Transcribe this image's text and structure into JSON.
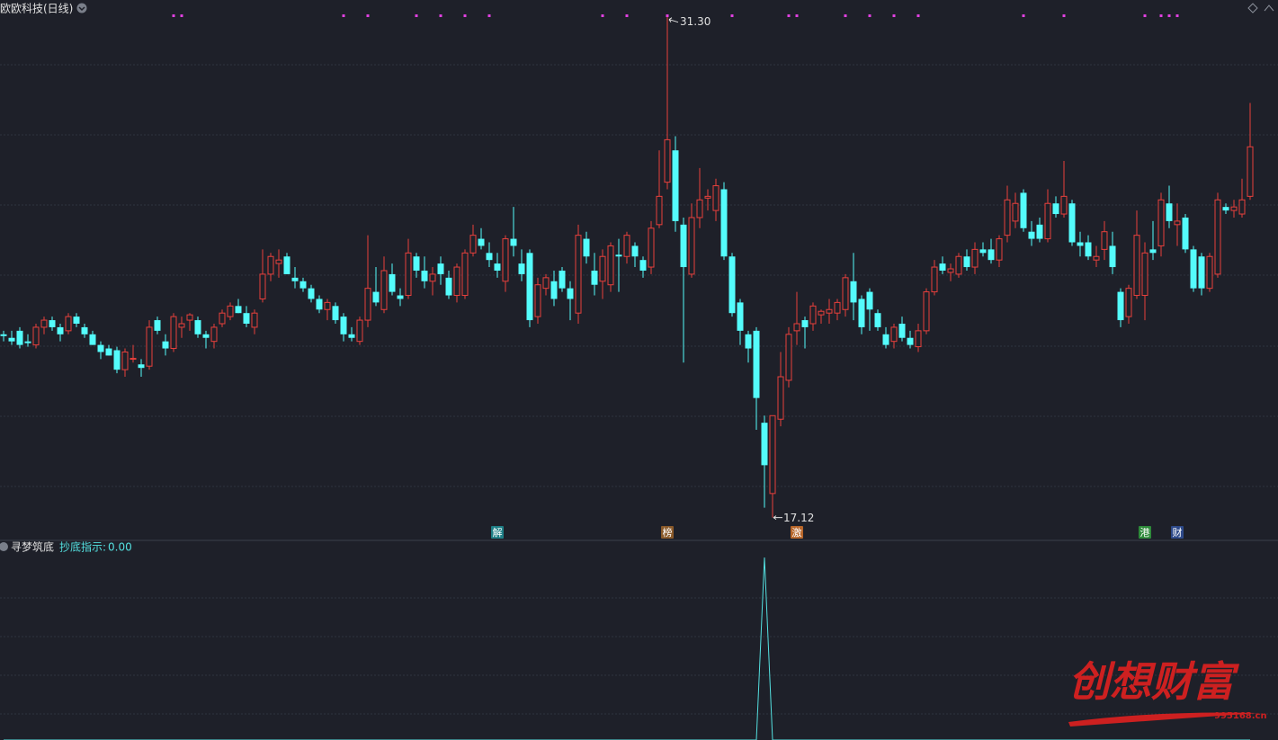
{
  "chart_data": {
    "type": "candlestick",
    "title": "欧欧科技(日线)",
    "ylim": [
      16.5,
      31.75
    ],
    "up_color": "#e8403c",
    "down_color": "#54fcfc",
    "open": [
      22.3,
      22.2,
      22.4,
      22.1,
      22.0,
      22.5,
      22.7,
      22.5,
      22.4,
      22.8,
      22.5,
      22.3,
      22.0,
      21.9,
      21.85,
      21.3,
      21.6,
      21.45,
      21.4,
      22.7,
      22.1,
      21.9,
      22.5,
      22.7,
      22.7,
      22.3,
      22.1,
      22.6,
      22.8,
      23.1,
      22.9,
      22.5,
      23.3,
      24.0,
      24.3,
      24.5,
      23.9,
      23.8,
      23.6,
      23.3,
      23.0,
      23.1,
      22.8,
      22.3,
      22.1,
      22.7,
      23.5,
      23.0,
      24.0,
      23.4,
      23.4,
      24.5,
      24.1,
      23.8,
      24.3,
      23.9,
      23.4,
      23.4,
      24.6,
      25.0,
      24.6,
      24.3,
      23.8,
      25.0,
      24.3,
      24.6,
      22.8,
      23.6,
      23.8,
      24.1,
      23.6,
      22.9,
      25.0,
      24.1,
      23.8,
      23.7,
      24.55,
      24.5,
      24.8,
      24.4,
      24.2,
      25.4,
      26.6,
      27.5,
      25.4,
      24.0,
      25.6,
      26.15,
      25.8,
      26.4,
      24.5,
      23.2,
      22.3,
      22.4,
      19.8,
      17.8,
      19.9,
      21.0,
      22.4,
      22.7,
      22.6,
      22.85,
      22.9,
      22.9,
      23.0,
      23.8,
      23.3,
      23.5,
      22.9,
      22.3,
      22.1,
      22.6,
      22.2,
      21.95,
      22.4,
      23.5,
      24.3,
      24.05,
      24.0,
      24.5,
      24.2,
      24.7,
      24.7,
      24.4,
      25.1,
      25.5,
      26.3,
      25.2,
      25.4,
      25.0,
      26.0,
      25.7,
      26.0,
      24.9,
      24.9,
      24.4,
      24.7,
      24.8,
      23.5,
      22.8,
      23.4,
      23.4,
      24.7,
      24.8,
      26.0,
      25.4,
      25.6,
      24.7,
      24.5,
      23.6,
      24.0,
      25.9,
      25.8,
      25.7,
      26.2
    ],
    "high": [
      22.4,
      22.4,
      22.5,
      22.3,
      22.6,
      22.8,
      22.8,
      22.6,
      22.9,
      22.9,
      22.6,
      22.4,
      22.1,
      22.0,
      21.95,
      21.9,
      22.0,
      21.6,
      22.7,
      22.8,
      22.3,
      22.9,
      22.8,
      22.9,
      22.8,
      22.4,
      22.6,
      23.0,
      23.2,
      23.3,
      23.1,
      23.0,
      24.7,
      24.6,
      24.7,
      24.6,
      24.2,
      23.9,
      23.7,
      23.4,
      23.3,
      23.2,
      22.9,
      22.5,
      22.8,
      25.1,
      24.2,
      24.5,
      24.3,
      23.6,
      25.0,
      24.6,
      24.5,
      24.2,
      24.5,
      24.1,
      24.3,
      24.7,
      25.4,
      25.3,
      24.9,
      24.6,
      25.1,
      25.9,
      24.7,
      24.7,
      23.9,
      24.0,
      24.1,
      24.2,
      23.8,
      25.4,
      25.2,
      24.6,
      24.7,
      24.9,
      25.0,
      25.2,
      24.9,
      24.5,
      25.5,
      27.5,
      31.3,
      27.9,
      25.6,
      26.0,
      27.0,
      26.4,
      26.7,
      26.6,
      24.6,
      23.3,
      22.4,
      22.5,
      20.0,
      20.0,
      21.8,
      22.5,
      23.5,
      22.8,
      23.2,
      23.0,
      23.3,
      23.3,
      24.0,
      24.6,
      23.4,
      23.6,
      23.0,
      22.5,
      22.6,
      22.8,
      22.4,
      22.6,
      23.6,
      24.4,
      24.5,
      24.3,
      24.6,
      24.7,
      24.9,
      24.9,
      25.0,
      25.1,
      26.5,
      26.3,
      26.4,
      25.5,
      25.6,
      26.4,
      26.2,
      27.2,
      26.1,
      25.2,
      25.1,
      24.8,
      25.5,
      25.2,
      23.6,
      23.7,
      25.8,
      24.9,
      25.5,
      26.3,
      26.5,
      26.0,
      25.7,
      24.8,
      24.6,
      24.6,
      26.3,
      26.0,
      26.1,
      26.7,
      28.84
    ],
    "low": [
      22.1,
      22.0,
      21.9,
      21.95,
      21.9,
      22.3,
      22.4,
      22.1,
      22.3,
      22.5,
      22.2,
      22.0,
      21.6,
      21.7,
      21.2,
      21.1,
      21.5,
      21.1,
      21.3,
      22.3,
      21.7,
      21.8,
      22.2,
      22.4,
      22.2,
      21.9,
      21.9,
      22.5,
      22.7,
      22.9,
      22.5,
      22.3,
      23.2,
      23.8,
      23.9,
      24.0,
      23.6,
      23.5,
      23.2,
      22.9,
      22.7,
      22.6,
      22.1,
      22.1,
      22.0,
      22.5,
      23.1,
      22.9,
      23.4,
      23.1,
      23.3,
      23.9,
      23.6,
      23.4,
      23.7,
      23.3,
      23.2,
      23.3,
      24.5,
      24.7,
      24.2,
      23.9,
      23.5,
      24.5,
      23.8,
      22.5,
      22.6,
      23.4,
      23.1,
      23.5,
      22.7,
      22.6,
      24.3,
      23.4,
      23.3,
      23.5,
      23.5,
      24.3,
      24.2,
      23.9,
      24.0,
      25.3,
      26.4,
      25.2,
      21.5,
      23.9,
      25.3,
      25.8,
      25.5,
      24.4,
      22.8,
      22.0,
      21.5,
      19.6,
      17.4,
      17.12,
      19.7,
      20.8,
      22.0,
      21.9,
      22.4,
      22.6,
      22.6,
      22.7,
      22.8,
      22.7,
      22.3,
      22.4,
      22.4,
      21.9,
      21.9,
      22.1,
      21.9,
      21.8,
      22.3,
      23.4,
      24.0,
      23.8,
      23.9,
      24.1,
      24.0,
      24.5,
      24.3,
      24.2,
      24.9,
      25.3,
      25.2,
      24.8,
      24.9,
      24.9,
      25.6,
      25.6,
      24.8,
      24.5,
      24.4,
      24.2,
      24.4,
      24.0,
      22.5,
      22.6,
      23.3,
      22.7,
      24.4,
      24.5,
      25.3,
      24.8,
      24.6,
      23.5,
      23.4,
      23.5,
      23.9,
      25.7,
      25.6,
      25.6,
      26.1
    ],
    "close": [
      22.25,
      22.1,
      22.0,
      22.05,
      22.5,
      22.7,
      22.5,
      22.3,
      22.8,
      22.6,
      22.3,
      22.0,
      21.8,
      21.7,
      21.3,
      21.8,
      21.62,
      21.35,
      22.5,
      22.4,
      21.9,
      22.8,
      22.6,
      22.85,
      22.3,
      22.2,
      22.5,
      22.9,
      23.1,
      22.9,
      22.6,
      22.9,
      24.0,
      24.5,
      24.4,
      24.0,
      23.8,
      23.6,
      23.3,
      23.0,
      23.2,
      22.7,
      22.3,
      22.2,
      22.7,
      23.6,
      23.2,
      24.1,
      23.5,
      23.3,
      24.6,
      24.1,
      23.8,
      24.0,
      24.0,
      23.4,
      24.2,
      24.6,
      25.1,
      24.8,
      24.4,
      24.1,
      25.0,
      24.8,
      24.0,
      22.7,
      23.7,
      23.9,
      23.3,
      23.6,
      23.3,
      25.1,
      24.5,
      23.7,
      24.5,
      24.8,
      24.5,
      25.1,
      24.5,
      24.1,
      25.3,
      26.2,
      27.8,
      25.5,
      24.2,
      25.6,
      26.1,
      26.2,
      26.5,
      24.5,
      22.9,
      22.4,
      21.9,
      20.5,
      18.6,
      20.0,
      21.1,
      22.3,
      22.6,
      22.5,
      23.1,
      22.95,
      23.0,
      23.2,
      23.9,
      23.2,
      22.5,
      23.0,
      22.5,
      22.0,
      22.5,
      22.2,
      22.0,
      22.4,
      23.5,
      24.2,
      24.1,
      24.15,
      24.5,
      24.2,
      24.7,
      24.6,
      24.4,
      25.0,
      26.1,
      26.0,
      25.3,
      25.0,
      25.0,
      26.0,
      25.7,
      26.2,
      24.9,
      24.8,
      24.5,
      24.5,
      25.2,
      24.2,
      22.7,
      23.6,
      25.1,
      24.6,
      24.6,
      26.1,
      25.5,
      25.5,
      24.7,
      23.6,
      23.6,
      24.5,
      26.1,
      25.8,
      25.9,
      26.1,
      27.6
    ],
    "high_label": "31.30",
    "low_label": "17.12",
    "signal_color": "#e040e0",
    "signals": [
      21,
      22,
      42,
      45,
      51,
      54,
      57,
      60,
      74,
      77,
      82,
      90,
      97,
      98,
      104,
      107,
      110,
      113,
      126,
      131,
      141,
      143,
      144,
      145
    ],
    "markers": [
      {
        "label": "解",
        "candle": 61,
        "color": "#1f7f86"
      },
      {
        "label": "榜",
        "candle": 82,
        "color": "#8a5a2a"
      },
      {
        "label": "激",
        "candle": 98,
        "color": "#b8662a"
      },
      {
        "label": "港",
        "candle": 141,
        "color": "#2e8a3a"
      },
      {
        "label": "财",
        "candle": 145,
        "color": "#2e4a8a"
      }
    ],
    "indicator": {
      "title": "寻梦筑底",
      "name": "抄底指示:",
      "current": "0.00",
      "color": "#54e0e0",
      "ylim": [
        0,
        100
      ],
      "values": [
        0,
        0,
        0,
        0,
        0,
        0,
        0,
        0,
        0,
        0,
        0,
        0,
        0,
        0,
        0,
        0,
        0,
        0,
        0,
        0,
        0,
        0,
        0,
        0,
        0,
        0,
        0,
        0,
        0,
        0,
        0,
        0,
        0,
        0,
        0,
        0,
        0,
        0,
        0,
        0,
        0,
        0,
        0,
        0,
        0,
        0,
        0,
        0,
        0,
        0,
        0,
        0,
        0,
        0,
        0,
        0,
        0,
        0,
        0,
        0,
        0,
        0,
        0,
        0,
        0,
        0,
        0,
        0,
        0,
        0,
        0,
        0,
        0,
        0,
        0,
        0,
        0,
        0,
        0,
        0,
        0,
        0,
        0,
        0,
        0,
        0,
        0,
        0,
        0,
        0,
        0,
        0,
        0,
        0,
        100,
        0,
        0,
        0,
        0,
        0,
        0,
        0,
        0,
        0,
        0,
        0,
        0,
        0,
        0,
        0,
        0,
        0,
        0,
        0,
        0,
        0,
        0,
        0,
        0,
        0,
        0,
        0,
        0,
        0,
        0,
        0,
        0,
        0,
        0,
        0,
        0,
        0,
        0,
        0,
        0,
        0,
        0,
        0,
        0,
        0,
        0,
        0,
        0,
        0,
        0,
        0,
        0,
        0,
        0,
        0,
        0,
        0,
        0,
        0,
        0
      ]
    },
    "watermark": "创想财富",
    "watermark_url": "995168.cn"
  }
}
